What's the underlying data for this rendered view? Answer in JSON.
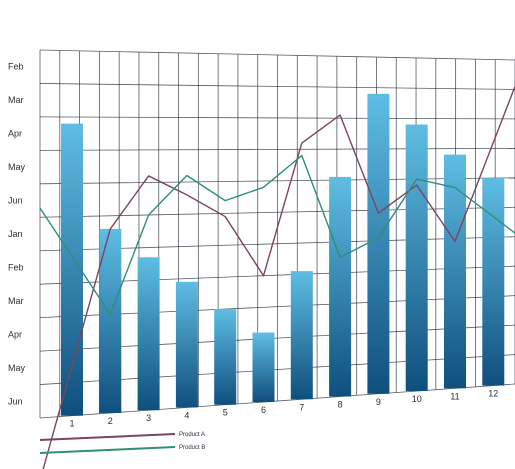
{
  "chart_data": {
    "type": "bar",
    "categories": [
      "1",
      "2",
      "3",
      "4",
      "5",
      "6",
      "7",
      "8",
      "9",
      "10",
      "11",
      "12"
    ],
    "y_tick_labels": [
      "Jun",
      "May",
      "Apr",
      "Mar",
      "Feb",
      "Jan",
      "Jun",
      "May",
      "Apr",
      "Mar",
      "Feb"
    ],
    "ylim": [
      0,
      11
    ],
    "grid": true,
    "legend_position": "bottom-left",
    "series": [
      {
        "kind": "bar",
        "values": [
          8.8,
          5.6,
          4.7,
          3.9,
          3.0,
          2.2,
          4.1,
          7.1,
          9.8,
          8.8,
          7.8,
          7.0
        ]
      },
      {
        "kind": "line",
        "name": "Product A",
        "values": [
          1.5,
          5.6,
          7.2,
          6.6,
          5.9,
          4.0,
          8.2,
          9.1,
          5.9,
          6.8,
          4.9,
          8.2
        ]
      },
      {
        "kind": "line",
        "name": "Product B",
        "values": [
          4.8,
          3.0,
          6.0,
          7.2,
          6.4,
          6.8,
          7.8,
          4.5,
          5.1,
          7.0,
          6.7,
          5.7
        ]
      }
    ],
    "colors": {
      "bar_top": "#5fbde3",
      "bar_bottom": "#0f4f7e",
      "grid": "#1d2633",
      "product_a": "#7a4560",
      "product_b": "#2f8f78"
    }
  }
}
